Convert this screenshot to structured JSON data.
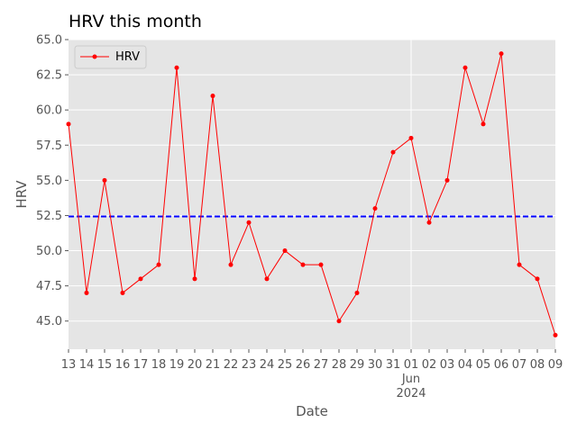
{
  "chart_data": {
    "type": "line",
    "title": "HRV this month",
    "xlabel": "Date",
    "ylabel": "HRV",
    "x": [
      "2024-05-13",
      "2024-05-14",
      "2024-05-15",
      "2024-05-16",
      "2024-05-17",
      "2024-05-18",
      "2024-05-19",
      "2024-05-20",
      "2024-05-21",
      "2024-05-22",
      "2024-05-23",
      "2024-05-24",
      "2024-05-25",
      "2024-05-26",
      "2024-05-27",
      "2024-05-28",
      "2024-05-29",
      "2024-05-30",
      "2024-05-31",
      "2024-06-01",
      "2024-06-02",
      "2024-06-03",
      "2024-06-04",
      "2024-06-05",
      "2024-06-06",
      "2024-06-07",
      "2024-06-08",
      "2024-06-09"
    ],
    "x_tick_labels": [
      "13",
      "14",
      "15",
      "16",
      "17",
      "18",
      "19",
      "20",
      "21",
      "22",
      "23",
      "24",
      "25",
      "26",
      "27",
      "28",
      "29",
      "30",
      "31",
      "01",
      "02",
      "03",
      "04",
      "05",
      "06",
      "07",
      "08",
      "09"
    ],
    "x_secondary_label": {
      "month": "Jun",
      "year": "2024"
    },
    "series": [
      {
        "name": "HRV",
        "color": "#ff0000",
        "marker": "circle",
        "values": [
          59,
          47,
          55,
          47,
          48,
          49,
          63,
          48,
          61,
          49,
          52,
          48,
          50,
          49,
          49,
          45,
          47,
          53,
          57,
          58,
          52,
          55,
          63,
          59,
          64,
          49,
          48,
          44
        ]
      }
    ],
    "reference_line": {
      "y": 52.43,
      "style": "dashed",
      "color": "#0000ff"
    },
    "ylim": [
      43.0,
      65.0
    ],
    "y_ticks": [
      "45.0",
      "47.5",
      "50.0",
      "52.5",
      "55.0",
      "57.5",
      "60.0",
      "62.5",
      "65.0"
    ],
    "grid": true,
    "legend_position": "top-left",
    "background_color": "#e5e5e5"
  }
}
